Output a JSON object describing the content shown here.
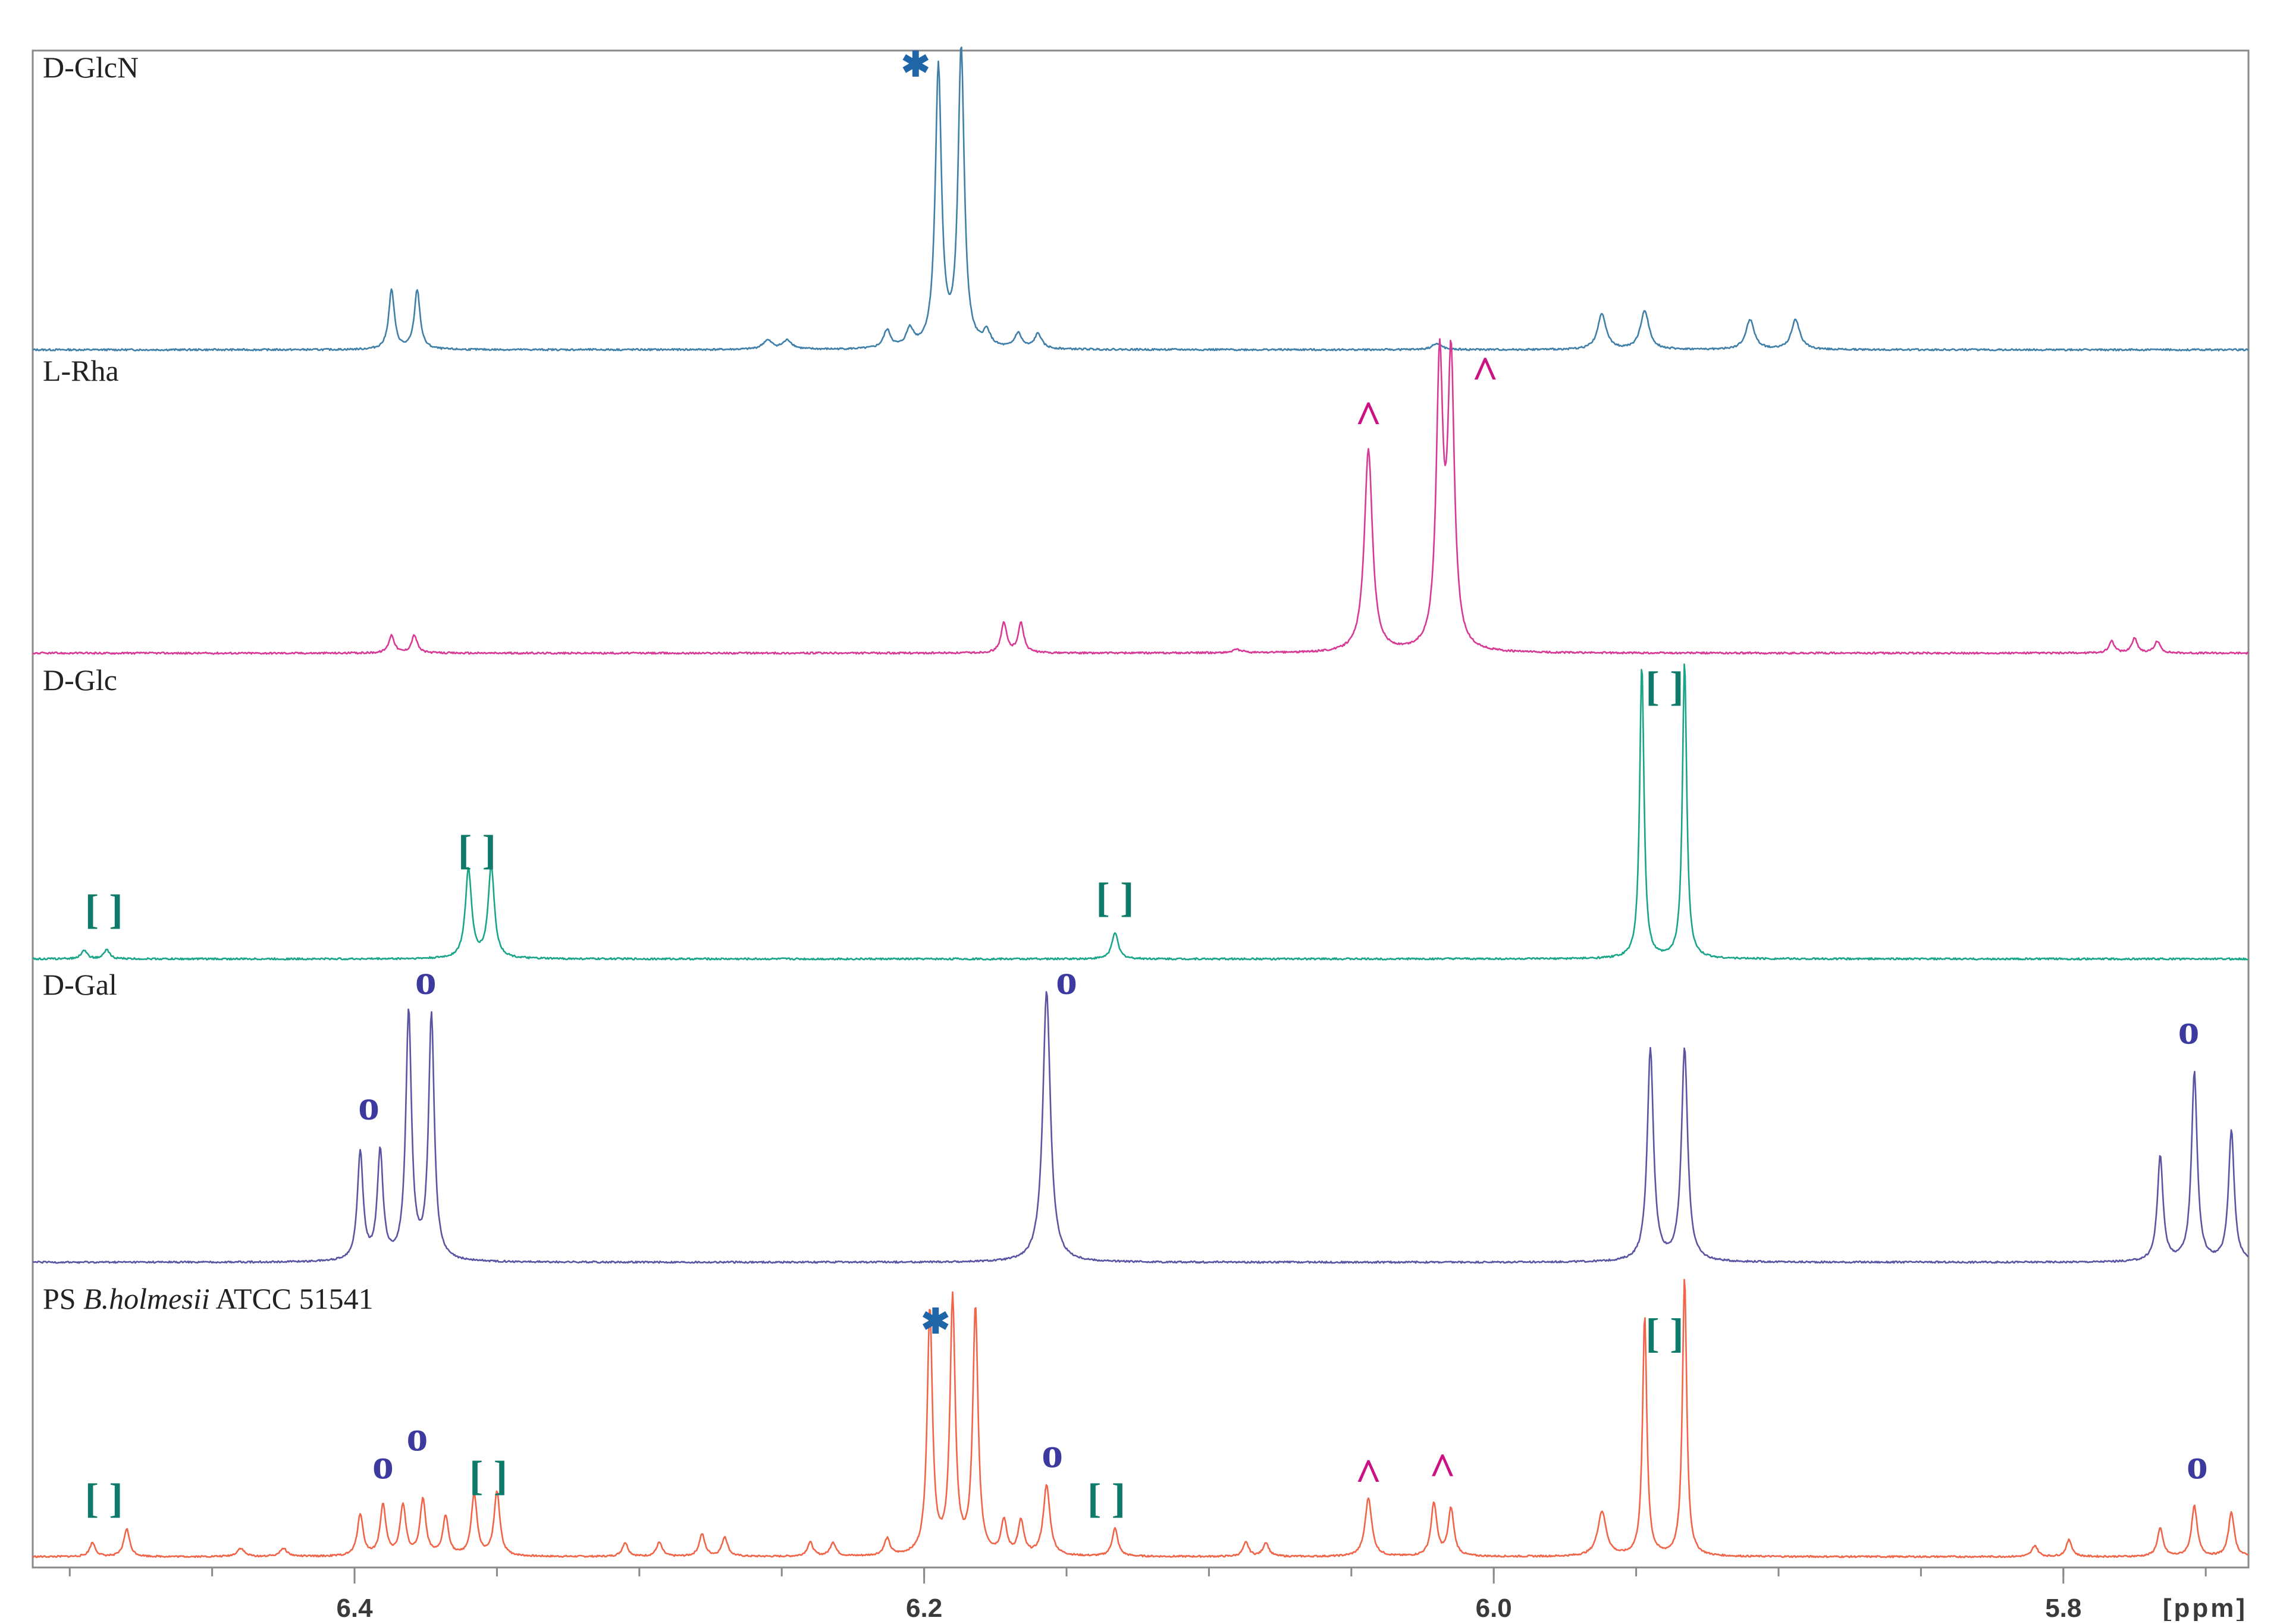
{
  "chart_data": {
    "type": "line",
    "title": "",
    "xlabel": "[ppm]",
    "ylabel": "",
    "x_axis": {
      "reversed": true,
      "xlim": [
        6.513,
        5.735
      ],
      "ticks": [
        6.4,
        6.2,
        6.0,
        5.8
      ],
      "tick_labels": [
        "6.4",
        "6.2",
        "6.0",
        "5.8"
      ]
    },
    "grid": false,
    "legend": "none",
    "series": [
      {
        "name": "D-GlcN",
        "color": "#3f7fa8",
        "peaks": [
          {
            "ppm": 6.387,
            "height": 0.2,
            "width": 0.0012
          },
          {
            "ppm": 6.378,
            "height": 0.2,
            "width": 0.0012
          },
          {
            "ppm": 6.255,
            "height": 0.03,
            "width": 0.002
          },
          {
            "ppm": 6.248,
            "height": 0.03,
            "width": 0.002
          },
          {
            "ppm": 6.213,
            "height": 0.06,
            "width": 0.0015
          },
          {
            "ppm": 6.205,
            "height": 0.06,
            "width": 0.0015
          },
          {
            "ppm": 6.195,
            "height": 0.94,
            "width": 0.0013
          },
          {
            "ppm": 6.187,
            "height": 1.0,
            "width": 0.0013
          },
          {
            "ppm": 6.178,
            "height": 0.05,
            "width": 0.0015
          },
          {
            "ppm": 6.167,
            "height": 0.05,
            "width": 0.0015
          },
          {
            "ppm": 6.16,
            "height": 0.05,
            "width": 0.0015
          },
          {
            "ppm": 6.02,
            "height": 0.02,
            "width": 0.002
          },
          {
            "ppm": 5.962,
            "height": 0.12,
            "width": 0.0018
          },
          {
            "ppm": 5.947,
            "height": 0.13,
            "width": 0.0018
          },
          {
            "ppm": 5.91,
            "height": 0.1,
            "width": 0.0018
          },
          {
            "ppm": 5.894,
            "height": 0.1,
            "width": 0.0018
          }
        ]
      },
      {
        "name": "L-Rha",
        "color": "#d63a96",
        "peaks": [
          {
            "ppm": 6.387,
            "height": 0.06,
            "width": 0.0012
          },
          {
            "ppm": 6.379,
            "height": 0.06,
            "width": 0.0012
          },
          {
            "ppm": 6.172,
            "height": 0.1,
            "width": 0.0012
          },
          {
            "ppm": 6.166,
            "height": 0.1,
            "width": 0.0012
          },
          {
            "ppm": 6.09,
            "height": 0.01,
            "width": 0.002
          },
          {
            "ppm": 6.044,
            "height": 0.68,
            "width": 0.0017
          },
          {
            "ppm": 6.019,
            "height": 0.95,
            "width": 0.0014
          },
          {
            "ppm": 6.015,
            "height": 0.95,
            "width": 0.0014
          },
          {
            "ppm": 5.783,
            "height": 0.04,
            "width": 0.0012
          },
          {
            "ppm": 5.775,
            "height": 0.05,
            "width": 0.0012
          },
          {
            "ppm": 5.767,
            "height": 0.04,
            "width": 0.0012
          }
        ]
      },
      {
        "name": "D-Glc",
        "color": "#1aa588",
        "peaks": [
          {
            "ppm": 6.495,
            "height": 0.03,
            "width": 0.0012
          },
          {
            "ppm": 6.487,
            "height": 0.03,
            "width": 0.0012
          },
          {
            "ppm": 6.36,
            "height": 0.3,
            "width": 0.0013
          },
          {
            "ppm": 6.352,
            "height": 0.31,
            "width": 0.0013
          },
          {
            "ppm": 6.133,
            "height": 0.09,
            "width": 0.0013
          },
          {
            "ppm": 5.948,
            "height": 0.99,
            "width": 0.0009
          },
          {
            "ppm": 5.933,
            "height": 1.0,
            "width": 0.0009
          }
        ]
      },
      {
        "name": "D-Gal",
        "color": "#5a55a3",
        "peaks": [
          {
            "ppm": 6.398,
            "height": 0.37,
            "width": 0.0012
          },
          {
            "ppm": 6.391,
            "height": 0.37,
            "width": 0.0012
          },
          {
            "ppm": 6.381,
            "height": 0.85,
            "width": 0.0012
          },
          {
            "ppm": 6.373,
            "height": 0.84,
            "width": 0.0012
          },
          {
            "ppm": 6.157,
            "height": 0.93,
            "width": 0.0016
          },
          {
            "ppm": 5.945,
            "height": 0.73,
            "width": 0.0013
          },
          {
            "ppm": 5.933,
            "height": 0.73,
            "width": 0.0013
          },
          {
            "ppm": 5.766,
            "height": 0.36,
            "width": 0.0012
          },
          {
            "ppm": 5.754,
            "height": 0.65,
            "width": 0.0012
          },
          {
            "ppm": 5.741,
            "height": 0.45,
            "width": 0.0012
          }
        ]
      },
      {
        "name": "PS B.holmesii ATCC 51541",
        "color": "#f06448",
        "peaks": [
          {
            "ppm": 6.492,
            "height": 0.05,
            "width": 0.0012
          },
          {
            "ppm": 6.48,
            "height": 0.1,
            "width": 0.0012
          },
          {
            "ppm": 6.44,
            "height": 0.03,
            "width": 0.0015
          },
          {
            "ppm": 6.425,
            "height": 0.03,
            "width": 0.0015
          },
          {
            "ppm": 6.398,
            "height": 0.15,
            "width": 0.0012
          },
          {
            "ppm": 6.39,
            "height": 0.18,
            "width": 0.0012
          },
          {
            "ppm": 6.383,
            "height": 0.18,
            "width": 0.0012
          },
          {
            "ppm": 6.376,
            "height": 0.2,
            "width": 0.0012
          },
          {
            "ppm": 6.368,
            "height": 0.14,
            "width": 0.0012
          },
          {
            "ppm": 6.358,
            "height": 0.22,
            "width": 0.0012
          },
          {
            "ppm": 6.35,
            "height": 0.23,
            "width": 0.0012
          },
          {
            "ppm": 6.305,
            "height": 0.05,
            "width": 0.0012
          },
          {
            "ppm": 6.293,
            "height": 0.05,
            "width": 0.0012
          },
          {
            "ppm": 6.278,
            "height": 0.08,
            "width": 0.0012
          },
          {
            "ppm": 6.27,
            "height": 0.07,
            "width": 0.0012
          },
          {
            "ppm": 6.24,
            "height": 0.05,
            "width": 0.0012
          },
          {
            "ppm": 6.232,
            "height": 0.05,
            "width": 0.0012
          },
          {
            "ppm": 6.213,
            "height": 0.06,
            "width": 0.0012
          },
          {
            "ppm": 6.198,
            "height": 0.88,
            "width": 0.0011
          },
          {
            "ppm": 6.19,
            "height": 0.91,
            "width": 0.0011
          },
          {
            "ppm": 6.182,
            "height": 0.88,
            "width": 0.0011
          },
          {
            "ppm": 6.172,
            "height": 0.12,
            "width": 0.0012
          },
          {
            "ppm": 6.166,
            "height": 0.12,
            "width": 0.0012
          },
          {
            "ppm": 6.157,
            "height": 0.25,
            "width": 0.0014
          },
          {
            "ppm": 6.133,
            "height": 0.1,
            "width": 0.0012
          },
          {
            "ppm": 6.087,
            "height": 0.05,
            "width": 0.0012
          },
          {
            "ppm": 6.08,
            "height": 0.05,
            "width": 0.0012
          },
          {
            "ppm": 6.044,
            "height": 0.21,
            "width": 0.0014
          },
          {
            "ppm": 6.021,
            "height": 0.19,
            "width": 0.0012
          },
          {
            "ppm": 6.015,
            "height": 0.17,
            "width": 0.0012
          },
          {
            "ppm": 5.962,
            "height": 0.16,
            "width": 0.0018
          },
          {
            "ppm": 5.947,
            "height": 0.86,
            "width": 0.0009
          },
          {
            "ppm": 5.933,
            "height": 1.0,
            "width": 0.0009
          },
          {
            "ppm": 5.798,
            "height": 0.06,
            "width": 0.0012
          },
          {
            "ppm": 5.81,
            "height": 0.04,
            "width": 0.0012
          },
          {
            "ppm": 5.766,
            "height": 0.1,
            "width": 0.0012
          },
          {
            "ppm": 5.754,
            "height": 0.18,
            "width": 0.0012
          },
          {
            "ppm": 5.741,
            "height": 0.16,
            "width": 0.0012
          }
        ]
      }
    ]
  },
  "annotations": [
    {
      "series": 0,
      "ppm": 6.203,
      "level": 0.92,
      "symbol": "✱",
      "color": "#1f66a8"
    },
    {
      "series": 1,
      "ppm": 6.044,
      "level": 0.8,
      "symbol": "^",
      "color": "#cc1185"
    },
    {
      "series": 1,
      "ppm": 6.003,
      "level": 0.95,
      "symbol": "^",
      "color": "#cc1185"
    },
    {
      "series": 2,
      "ppm": 5.94,
      "level": 0.87,
      "symbol": "[ ]",
      "color": "#0e7a6a"
    },
    {
      "series": 2,
      "ppm": 6.357,
      "level": 0.32,
      "symbol": "[ ]",
      "color": "#0e7a6a"
    },
    {
      "series": 2,
      "ppm": 6.488,
      "level": 0.12,
      "symbol": "[ ]",
      "color": "#0e7a6a"
    },
    {
      "series": 2,
      "ppm": 6.133,
      "level": 0.16,
      "symbol": "[ ]",
      "color": "#0e7a6a"
    },
    {
      "series": 3,
      "ppm": 6.375,
      "level": 0.92,
      "symbol": "o",
      "color": "#3c3a9e"
    },
    {
      "series": 3,
      "ppm": 6.395,
      "level": 0.49,
      "symbol": "o",
      "color": "#3c3a9e"
    },
    {
      "series": 3,
      "ppm": 6.15,
      "level": 0.92,
      "symbol": "o",
      "color": "#3c3a9e"
    },
    {
      "series": 3,
      "ppm": 5.756,
      "level": 0.75,
      "symbol": "o",
      "color": "#3c3a9e"
    },
    {
      "series": 4,
      "ppm": 6.196,
      "level": 0.8,
      "symbol": "✱",
      "color": "#1f66a8"
    },
    {
      "series": 4,
      "ppm": 6.39,
      "level": 0.28,
      "symbol": "o",
      "color": "#3c3a9e"
    },
    {
      "series": 4,
      "ppm": 6.378,
      "level": 0.38,
      "symbol": "o",
      "color": "#3c3a9e"
    },
    {
      "series": 4,
      "ppm": 6.155,
      "level": 0.32,
      "symbol": "o",
      "color": "#3c3a9e"
    },
    {
      "series": 4,
      "ppm": 5.753,
      "level": 0.28,
      "symbol": "o",
      "color": "#3c3a9e"
    },
    {
      "series": 4,
      "ppm": 6.044,
      "level": 0.3,
      "symbol": "^",
      "color": "#cc1185"
    },
    {
      "series": 4,
      "ppm": 6.018,
      "level": 0.32,
      "symbol": "^",
      "color": "#cc1185"
    },
    {
      "series": 4,
      "ppm": 5.94,
      "level": 0.75,
      "symbol": "[ ]",
      "color": "#0e7a6a"
    },
    {
      "series": 4,
      "ppm": 6.353,
      "level": 0.24,
      "symbol": "[ ]",
      "color": "#0e7a6a"
    },
    {
      "series": 4,
      "ppm": 6.488,
      "level": 0.16,
      "symbol": "[ ]",
      "color": "#0e7a6a"
    },
    {
      "series": 4,
      "ppm": 6.136,
      "level": 0.16,
      "symbol": "[ ]",
      "color": "#0e7a6a"
    }
  ]
}
